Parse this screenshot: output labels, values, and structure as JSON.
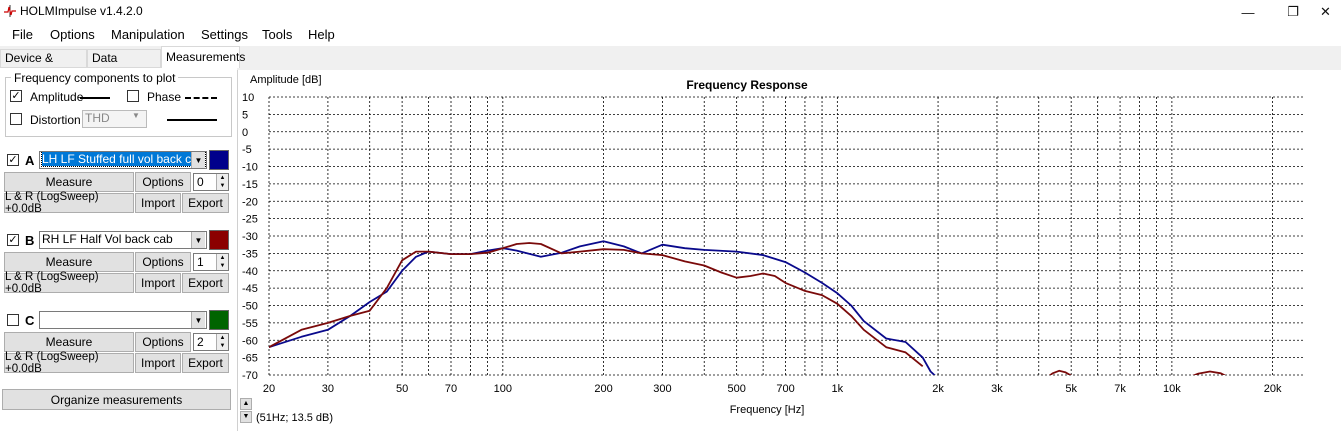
{
  "window": {
    "title": "HOLMImpulse v1.4.2.0",
    "min_glyph": "—",
    "max_glyph": "❐",
    "close_glyph": "✕"
  },
  "menu": [
    "File",
    "Options",
    "Manipulation",
    "Settings",
    "Tools",
    "Help"
  ],
  "tabs": [
    {
      "label": "Device & Signal",
      "active": false
    },
    {
      "label": "Data analysis",
      "active": false
    },
    {
      "label": "Measurements",
      "active": true
    }
  ],
  "freq_components": {
    "title": "Frequency components to plot",
    "amplitude": {
      "label": "Amplitude",
      "checked": true
    },
    "phase": {
      "label": "Phase",
      "checked": false
    },
    "distortion": {
      "label": "Distortion",
      "checked": false,
      "select": "THD"
    }
  },
  "slots": [
    {
      "letter": "A",
      "checked": true,
      "name": "LH LF Stuffed full vol back cab",
      "selected": true,
      "color": "#00008b",
      "measure": "Measure",
      "options": "Options",
      "spin": "0",
      "info": "L & R (LogSweep) +0.0dB",
      "import": "Import",
      "export": "Export"
    },
    {
      "letter": "B",
      "checked": true,
      "name": "RH LF Half Vol  back cab",
      "selected": false,
      "color": "#8b0000",
      "measure": "Measure",
      "options": "Options",
      "spin": "1",
      "info": "L & R (LogSweep) +0.0dB",
      "import": "Import",
      "export": "Export"
    },
    {
      "letter": "C",
      "checked": false,
      "name": "",
      "selected": false,
      "color": "#006400",
      "measure": "Measure",
      "options": "Options",
      "spin": "2",
      "info": "L & R (LogSweep) +0.0dB",
      "import": "Import",
      "export": "Export"
    }
  ],
  "organize_label": "Organize measurements",
  "cursor_readout": "(51Hz; 13.5 dB)",
  "chart_data": {
    "type": "line",
    "title": "Frequency Response",
    "ylabel": "Amplitude [dB]",
    "xlabel": "Frequency [Hz]",
    "xscale": "log",
    "xlim": [
      20,
      25000
    ],
    "ylim": [
      -70,
      10
    ],
    "grid": true,
    "yticks": [
      10,
      5,
      0,
      -5,
      -10,
      -15,
      -20,
      -25,
      -30,
      -35,
      -40,
      -45,
      -50,
      -55,
      -60,
      -65,
      -70
    ],
    "xticks": [
      {
        "v": 20,
        "label": "20"
      },
      {
        "v": 30,
        "label": "30"
      },
      {
        "v": 50,
        "label": "50"
      },
      {
        "v": 70,
        "label": "70"
      },
      {
        "v": 100,
        "label": "100"
      },
      {
        "v": 200,
        "label": "200"
      },
      {
        "v": 300,
        "label": "300"
      },
      {
        "v": 500,
        "label": "500"
      },
      {
        "v": 700,
        "label": "700"
      },
      {
        "v": 1000,
        "label": "1k"
      },
      {
        "v": 2000,
        "label": "2k"
      },
      {
        "v": 3000,
        "label": "3k"
      },
      {
        "v": 5000,
        "label": "5k"
      },
      {
        "v": 7000,
        "label": "7k"
      },
      {
        "v": 10000,
        "label": "10k"
      },
      {
        "v": 20000,
        "label": "20k"
      }
    ],
    "series": [
      {
        "color": "#0a0a8c",
        "x": [
          20,
          25,
          30,
          35,
          40,
          45,
          50,
          55,
          60,
          70,
          80,
          90,
          100,
          110,
          130,
          150,
          170,
          200,
          230,
          260,
          300,
          350,
          400,
          500,
          600,
          700,
          800,
          900,
          1000,
          1100,
          1200,
          1400,
          1600,
          1800,
          1900,
          2000
        ],
        "y": [
          -62,
          -59,
          -57,
          -53,
          -49,
          -46,
          -40,
          -36,
          -34.5,
          -35.2,
          -35.2,
          -34.2,
          -33.5,
          -34.2,
          -36,
          -34.8,
          -33,
          -31.5,
          -33,
          -35,
          -32.5,
          -33.5,
          -34,
          -34.5,
          -35.5,
          -37.5,
          -40.5,
          -43.5,
          -46.5,
          -50,
          -54.5,
          -59.5,
          -60.5,
          -65,
          -69,
          -71
        ]
      },
      {
        "color": "#7a0a0a",
        "x": [
          20,
          25,
          30,
          35,
          40,
          45,
          50,
          55,
          60,
          70,
          80,
          90,
          100,
          110,
          120,
          130,
          150,
          170,
          200,
          230,
          260,
          300,
          350,
          400,
          450,
          500,
          550,
          600,
          650,
          700,
          800,
          900,
          1000,
          1100,
          1200,
          1400,
          1600,
          1800
        ],
        "y": [
          -62,
          -57,
          -55,
          -53,
          -51.5,
          -45,
          -37,
          -34.5,
          -34.5,
          -35.2,
          -35.2,
          -34.8,
          -33.5,
          -32.3,
          -32,
          -32.3,
          -35,
          -34.5,
          -33.8,
          -34,
          -35,
          -35.5,
          -37.3,
          -38.5,
          -40.5,
          -42,
          -41.5,
          -40.8,
          -41.5,
          -43.5,
          -45.8,
          -47,
          -49.5,
          -53,
          -57,
          -62,
          -63.5,
          -67.5
        ]
      },
      {
        "color": "#7a0a0a",
        "x": [
          4200,
          4400,
          4600,
          4800,
          5000,
          5200
        ],
        "y": [
          -71,
          -69.5,
          -68.8,
          -69.2,
          -70.2,
          -71.5
        ]
      },
      {
        "color": "#7a0a0a",
        "x": [
          11000,
          12000,
          13000,
          14000,
          15000
        ],
        "y": [
          -71,
          -69.6,
          -69,
          -69.5,
          -71
        ]
      }
    ]
  }
}
